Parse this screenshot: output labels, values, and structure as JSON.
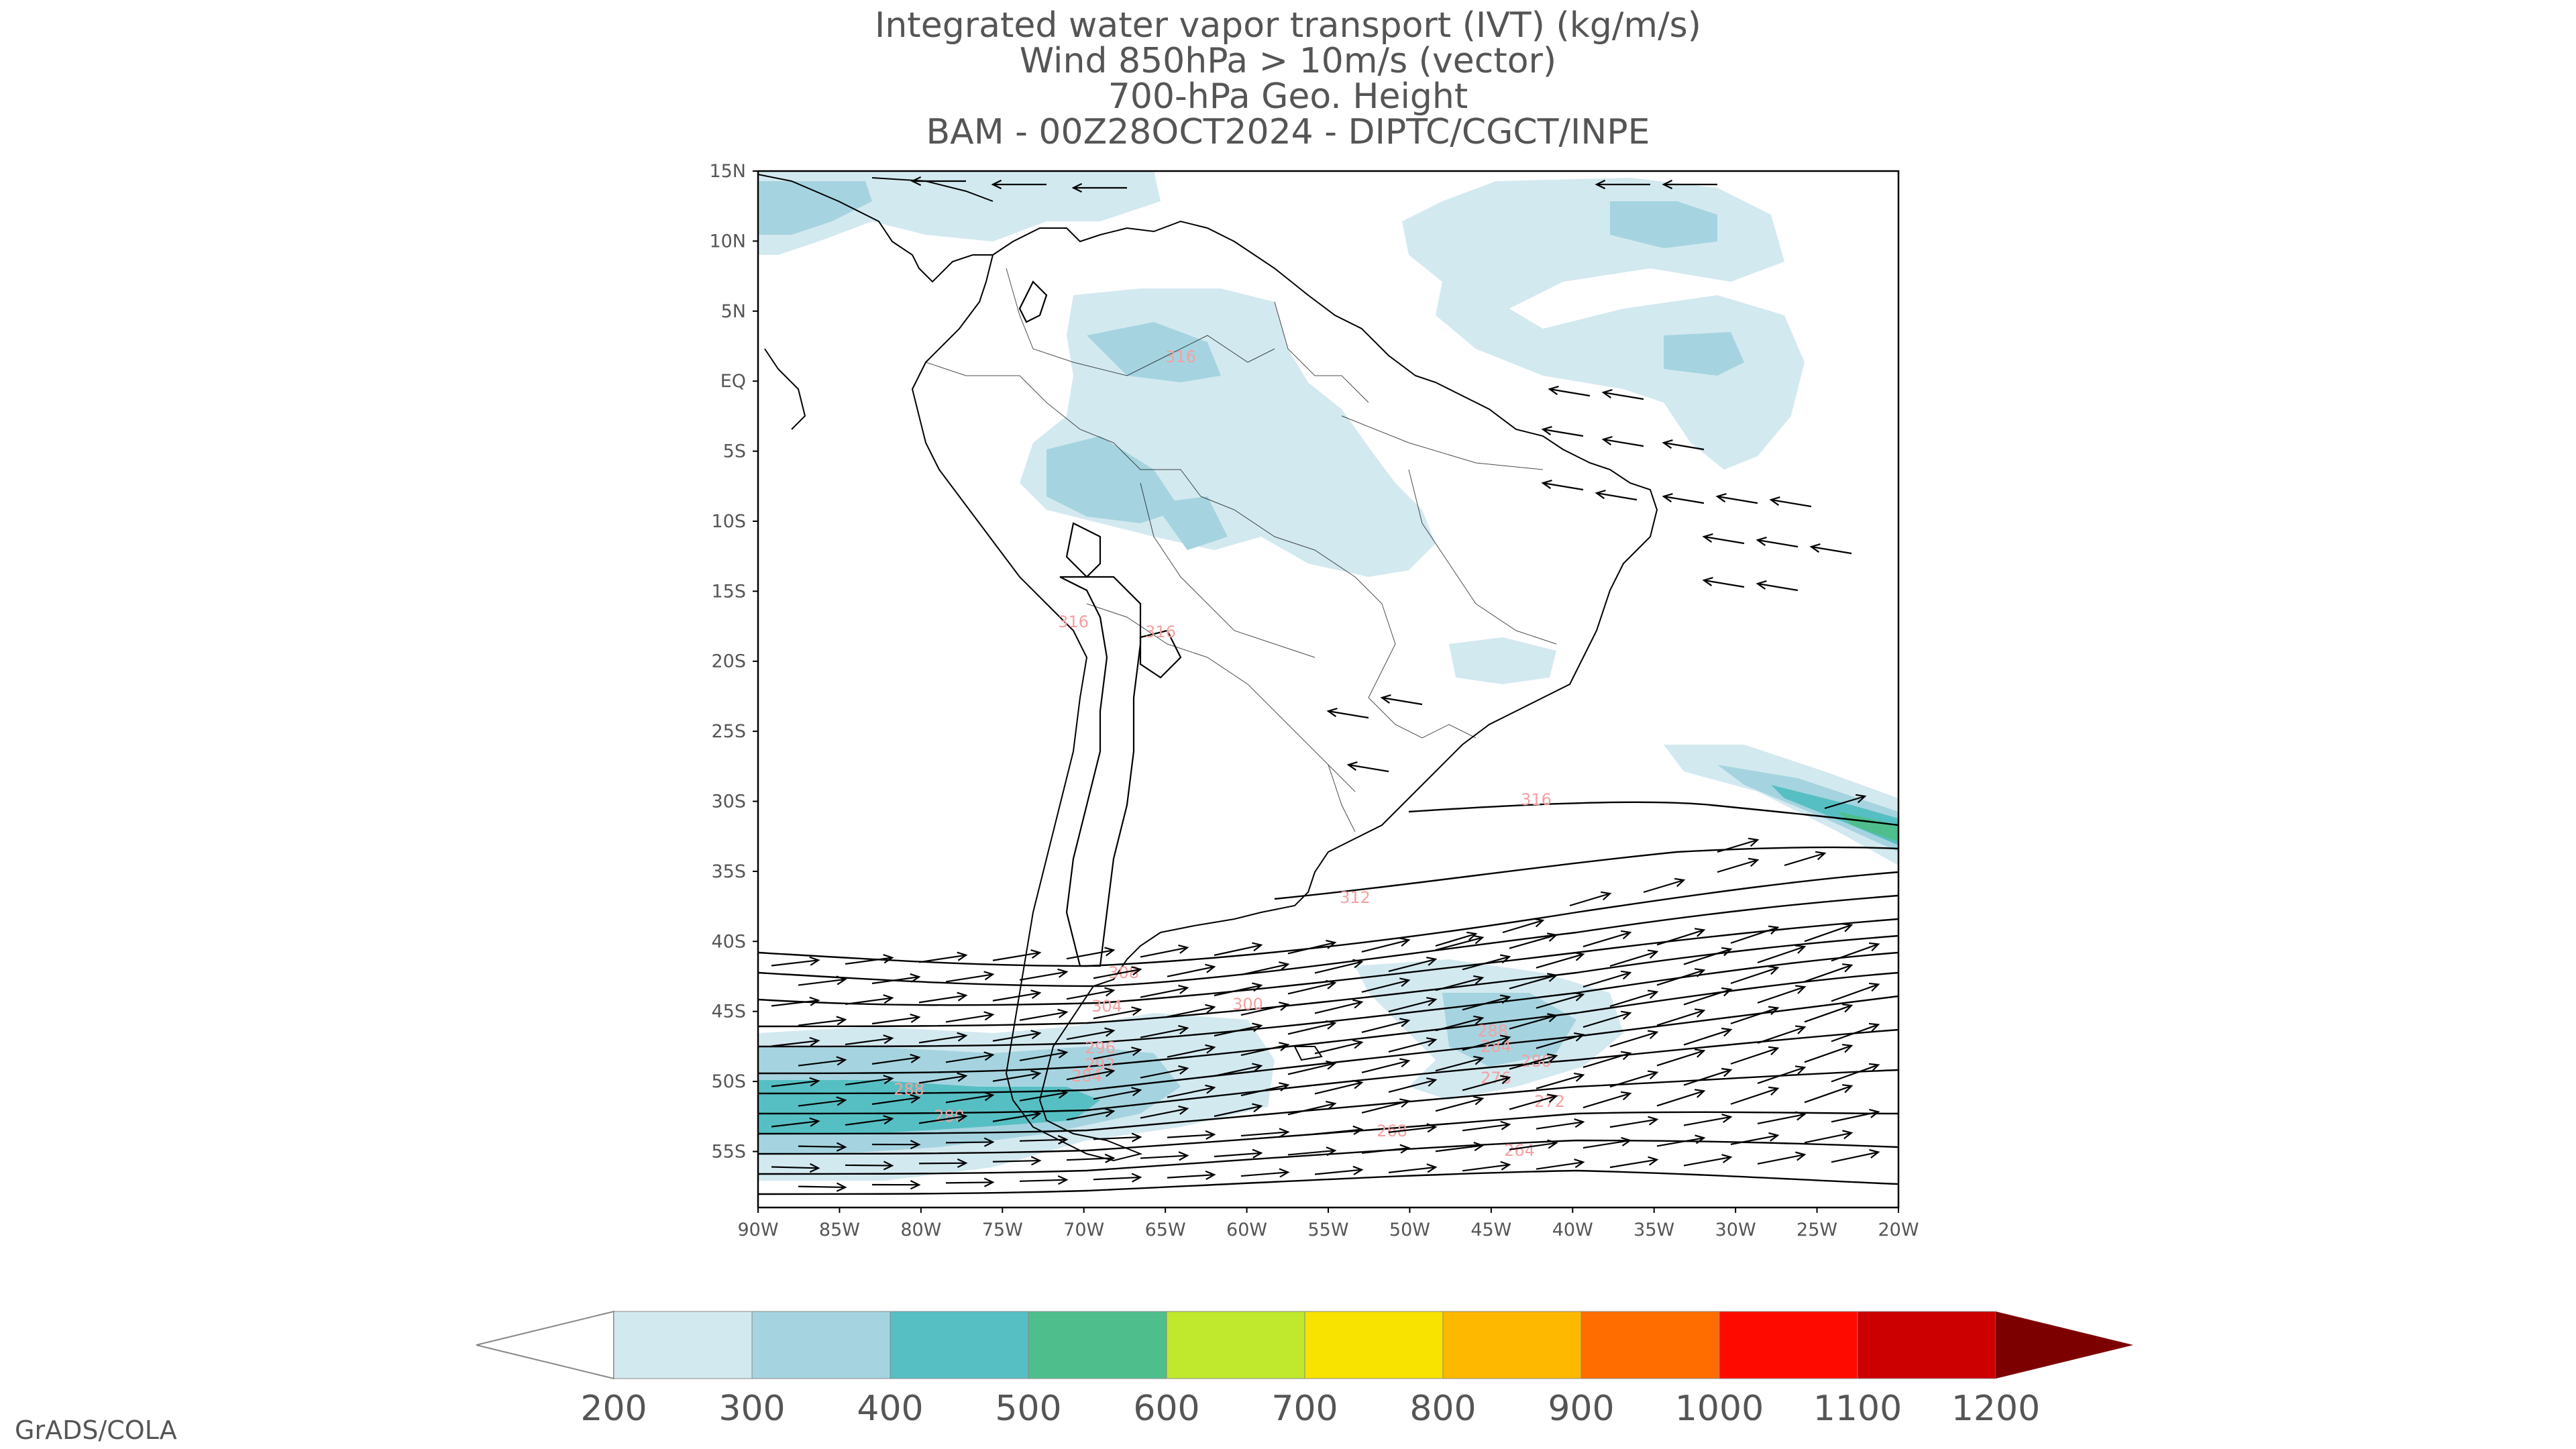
{
  "titles": {
    "line1": "Integrated water vapor transport (IVT) (kg/m/s)",
    "line2": "Wind 850hPa > 10m/s (vector)",
    "line3": "700-hPa Geo. Height",
    "line4": "BAM - 00Z28OCT2024 - DIPTC/CGCT/INPE"
  },
  "map": {
    "lon_range": [
      -90,
      -20
    ],
    "lat_range": [
      -59,
      15
    ],
    "lat_labels": [
      "15N",
      "10N",
      "5N",
      "EQ",
      "5S",
      "10S",
      "15S",
      "20S",
      "25S",
      "30S",
      "35S",
      "40S",
      "45S",
      "50S",
      "55S"
    ],
    "lon_labels": [
      "90W",
      "85W",
      "80W",
      "75W",
      "70W",
      "65W",
      "60W",
      "55W",
      "50W",
      "45W",
      "40W",
      "35W",
      "30W",
      "25W",
      "20W"
    ]
  },
  "contour_labels": [
    "316",
    "316",
    "316",
    "316",
    "312",
    "308",
    "304",
    "300",
    "296",
    "292",
    "288",
    "288",
    "284",
    "284",
    "280",
    "280",
    "276",
    "272",
    "268",
    "264"
  ],
  "colorbar": {
    "labels": [
      "200",
      "300",
      "400",
      "500",
      "600",
      "700",
      "800",
      "900",
      "1000",
      "1100",
      "1200"
    ],
    "colors": [
      "#d3e9f0",
      "#a5d4e0",
      "#56bfc3",
      "#4ebf8c",
      "#c0e82c",
      "#f7e200",
      "#ffb800",
      "#ff6c00",
      "#ff0a00",
      "#cc0000",
      "#7d0000"
    ]
  },
  "colors": {
    "coastline": "#000000",
    "contour": "#000000",
    "contour_label": "#f5a0a0",
    "text": "#555555"
  },
  "credit": "GrADS/COLA"
}
